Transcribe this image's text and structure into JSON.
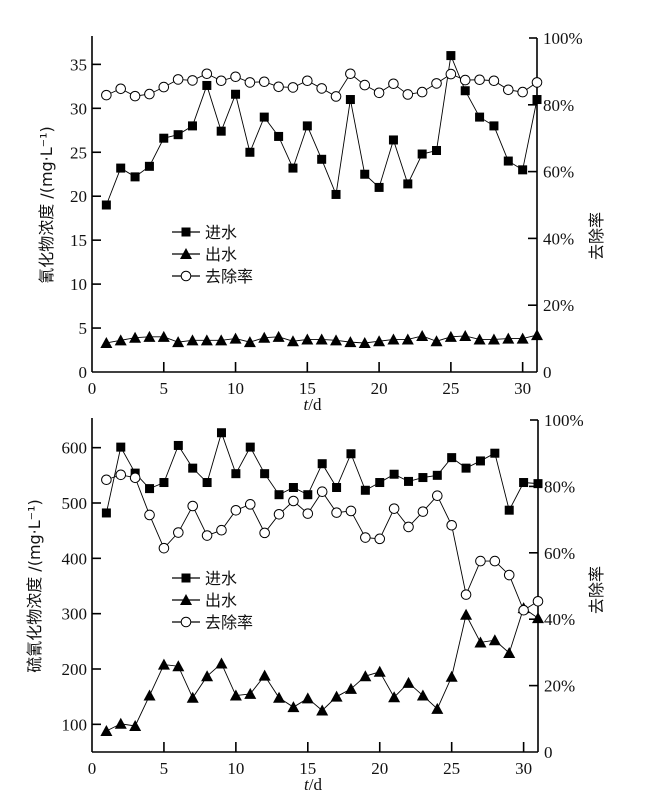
{
  "chart_data": [
    {
      "type": "line",
      "xlabel_italic": "t",
      "xlabel_rest": "/d",
      "ylabel": "氰化物浓度 /(mg·L⁻¹)",
      "y2label": "去除率",
      "xlim": [
        0,
        31
      ],
      "ylim": [
        0,
        38
      ],
      "y2lim": [
        0,
        100
      ],
      "xticks": [
        0,
        5,
        10,
        15,
        20,
        25,
        30
      ],
      "yticks": [
        0,
        5,
        10,
        15,
        20,
        25,
        30,
        35
      ],
      "y2ticks": [
        "0",
        "20%",
        "40%",
        "60%",
        "80%",
        "100%"
      ],
      "legend_position": "center-left",
      "x": [
        1,
        2,
        3,
        4,
        5,
        6,
        7,
        8,
        9,
        10,
        11,
        12,
        13,
        14,
        15,
        16,
        17,
        18,
        19,
        20,
        21,
        22,
        23,
        24,
        25,
        26,
        27,
        28,
        29,
        30,
        31
      ],
      "series": [
        {
          "name": "进水",
          "marker": "square",
          "axis": "left",
          "values": [
            19.0,
            23.2,
            22.2,
            23.4,
            26.6,
            27.0,
            28.0,
            32.6,
            27.4,
            31.6,
            25.0,
            29.0,
            26.8,
            23.2,
            28.0,
            24.2,
            20.2,
            31.0,
            22.5,
            21.0,
            26.4,
            21.4,
            24.8,
            25.2,
            36.0,
            32.0,
            29.0,
            28.0,
            24.0,
            23.0,
            31.0
          ]
        },
        {
          "name": "出水",
          "marker": "triangle",
          "axis": "left",
          "values": [
            3.3,
            3.6,
            3.9,
            4.0,
            4.0,
            3.4,
            3.6,
            3.6,
            3.6,
            3.8,
            3.4,
            3.9,
            4.0,
            3.5,
            3.7,
            3.7,
            3.6,
            3.4,
            3.3,
            3.5,
            3.7,
            3.7,
            4.1,
            3.5,
            4.0,
            4.1,
            3.7,
            3.7,
            3.8,
            3.8,
            4.2
          ]
        },
        {
          "name": "去除率",
          "marker": "circle",
          "axis": "right",
          "values": [
            82.9,
            84.8,
            82.6,
            83.2,
            85.3,
            87.6,
            87.3,
            89.3,
            87.2,
            88.4,
            86.7,
            86.9,
            85.4,
            85.2,
            87.2,
            84.9,
            82.5,
            89.3,
            85.9,
            83.6,
            86.3,
            83.1,
            83.8,
            86.4,
            89.2,
            87.4,
            87.5,
            87.2,
            84.5,
            83.8,
            86.7
          ]
        }
      ]
    },
    {
      "type": "line",
      "xlabel_italic": "t",
      "xlabel_rest": "/d",
      "ylabel": "硫氰化物浓度 /(mg·L⁻¹)",
      "y2label": "去除率",
      "xlim": [
        0,
        31
      ],
      "ylim": [
        50,
        650
      ],
      "y2lim": [
        0,
        100
      ],
      "xticks": [
        0,
        5,
        10,
        15,
        20,
        25,
        30
      ],
      "yticks": [
        100,
        200,
        300,
        400,
        500,
        600
      ],
      "y2ticks": [
        "0",
        "20%",
        "40%",
        "60%",
        "80%",
        "100%"
      ],
      "legend_position": "center-left",
      "x": [
        1,
        2,
        3,
        4,
        5,
        6,
        7,
        8,
        9,
        10,
        11,
        12,
        13,
        14,
        15,
        16,
        17,
        18,
        19,
        20,
        21,
        22,
        23,
        24,
        25,
        26,
        27,
        28,
        29,
        30,
        31
      ],
      "series": [
        {
          "name": "进水",
          "marker": "square",
          "axis": "left",
          "values": [
            482,
            601,
            554,
            526,
            537,
            604,
            563,
            537,
            627,
            553,
            601,
            553,
            515,
            528,
            515,
            571,
            528,
            589,
            523,
            537,
            552,
            539,
            546,
            550,
            582,
            563,
            576,
            590,
            487,
            537,
            535
          ]
        },
        {
          "name": "出水",
          "marker": "triangle",
          "axis": "left",
          "values": [
            88,
            101,
            97,
            152,
            208,
            205,
            148,
            187,
            210,
            152,
            155,
            188,
            148,
            131,
            147,
            125,
            150,
            164,
            187,
            195,
            149,
            175,
            152,
            128,
            186,
            298,
            248,
            252,
            229,
            310,
            292
          ]
        },
        {
          "name": "去除率",
          "marker": "circle",
          "axis": "right",
          "values": [
            82.0,
            83.5,
            82.6,
            71.4,
            61.4,
            66.1,
            74.1,
            65.2,
            66.8,
            72.8,
            74.6,
            66.0,
            71.6,
            75.6,
            71.8,
            78.4,
            72.1,
            72.6,
            64.6,
            64.2,
            73.3,
            67.8,
            72.4,
            77.2,
            68.3,
            47.4,
            57.5,
            57.5,
            53.3,
            42.7,
            45.4
          ]
        }
      ]
    }
  ]
}
